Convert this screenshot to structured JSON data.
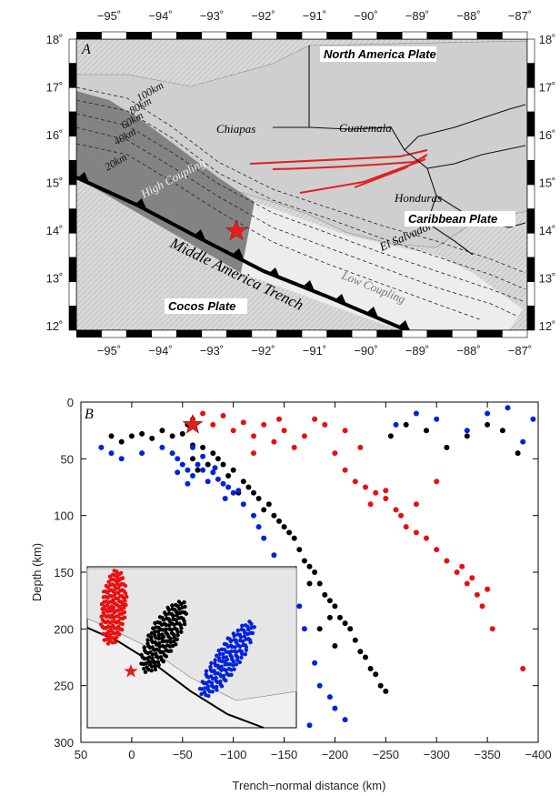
{
  "panel_a": {
    "label": "A",
    "lon_labels": [
      "−95˚",
      "−94˚",
      "−93˚",
      "−92˚",
      "−91˚",
      "−90˚",
      "−89˚",
      "−88˚",
      "−87˚"
    ],
    "lat_labels": [
      "18˚",
      "17˚",
      "16˚",
      "15˚",
      "14˚",
      "13˚",
      "12˚"
    ],
    "plates": {
      "north_america": "North America Plate",
      "caribbean": "Caribbean Plate",
      "cocos": "Cocos Plate"
    },
    "regions": {
      "chiapas": "Chiapas",
      "guatemala": "Guatemala",
      "honduras": "Honduras",
      "el_salvador": "El Salvador"
    },
    "zones": {
      "high": "High Coupling",
      "low": "Low Coupling"
    },
    "trench": "Middle America Trench",
    "contours": [
      "100km",
      "80km",
      "60km",
      "40km",
      "20km"
    ],
    "colors": {
      "high_coupling": "#777777",
      "low_coupling": "#eeeeee",
      "faults": "#e02020",
      "star": "#e02020"
    }
  },
  "chart_data": {
    "type": "scatter",
    "panel_label": "B",
    "xlabel": "Trench−normal distance (km)",
    "ylabel": "Depth (km)",
    "xlim": [
      50,
      -400
    ],
    "ylim": [
      300,
      0
    ],
    "x_ticks": [
      50,
      0,
      -50,
      -100,
      -150,
      -200,
      -250,
      -300,
      -350,
      -400
    ],
    "x_tick_labels": [
      "50",
      "0",
      "−50",
      "−100",
      "−150",
      "−200",
      "−250",
      "−300",
      "−350",
      "−400"
    ],
    "y_ticks": [
      0,
      50,
      100,
      150,
      200,
      250,
      300
    ],
    "y_tick_labels": [
      "0",
      "50",
      "100",
      "150",
      "200",
      "250",
      "300"
    ],
    "series": [
      {
        "color": "#000000",
        "points": [
          [
            20,
            30
          ],
          [
            10,
            35
          ],
          [
            0,
            30
          ],
          [
            -10,
            28
          ],
          [
            -20,
            32
          ],
          [
            -30,
            25
          ],
          [
            -40,
            30
          ],
          [
            -50,
            28
          ],
          [
            -55,
            20
          ],
          [
            -60,
            38
          ],
          [
            -70,
            40
          ],
          [
            -80,
            45
          ],
          [
            -90,
            55
          ],
          [
            -100,
            60
          ],
          [
            -110,
            70
          ],
          [
            -115,
            75
          ],
          [
            -120,
            80
          ],
          [
            -125,
            85
          ],
          [
            -130,
            95
          ],
          [
            -140,
            100
          ],
          [
            -145,
            105
          ],
          [
            -150,
            110
          ],
          [
            -155,
            115
          ],
          [
            -160,
            120
          ],
          [
            -165,
            130
          ],
          [
            -170,
            140
          ],
          [
            -175,
            145
          ],
          [
            -180,
            150
          ],
          [
            -185,
            160
          ],
          [
            -190,
            170
          ],
          [
            -195,
            175
          ],
          [
            -200,
            180
          ],
          [
            -205,
            190
          ],
          [
            -210,
            195
          ],
          [
            -215,
            200
          ],
          [
            -220,
            210
          ],
          [
            -225,
            220
          ],
          [
            -230,
            225
          ],
          [
            -235,
            235
          ],
          [
            -240,
            240
          ],
          [
            -245,
            250
          ],
          [
            -250,
            255
          ],
          [
            -255,
            30
          ],
          [
            -270,
            20
          ],
          [
            -290,
            25
          ],
          [
            -310,
            40
          ],
          [
            -330,
            30
          ],
          [
            -350,
            20
          ],
          [
            -365,
            25
          ],
          [
            -380,
            45
          ],
          [
            -60,
            50
          ],
          [
            -65,
            60
          ],
          [
            -75,
            55
          ],
          [
            -85,
            50
          ],
          [
            -95,
            65
          ],
          [
            -105,
            80
          ],
          [
            -135,
            90
          ],
          [
            -185,
            200
          ],
          [
            -200,
            215
          ],
          [
            -175,
            160
          ],
          [
            -195,
            190
          ]
        ]
      },
      {
        "color": "#0022dd",
        "points": [
          [
            30,
            40
          ],
          [
            20,
            45
          ],
          [
            10,
            50
          ],
          [
            -10,
            45
          ],
          [
            -30,
            40
          ],
          [
            -40,
            45
          ],
          [
            -45,
            50
          ],
          [
            -50,
            55
          ],
          [
            -55,
            60
          ],
          [
            -60,
            65
          ],
          [
            -65,
            55
          ],
          [
            -70,
            60
          ],
          [
            -75,
            70
          ],
          [
            -80,
            62
          ],
          [
            -85,
            68
          ],
          [
            -90,
            72
          ],
          [
            -95,
            75
          ],
          [
            -100,
            80
          ],
          [
            -105,
            78
          ],
          [
            -110,
            90
          ],
          [
            -120,
            100
          ],
          [
            -130,
            120
          ],
          [
            -140,
            135
          ],
          [
            -150,
            150
          ],
          [
            -160,
            170
          ],
          [
            -170,
            200
          ],
          [
            -180,
            230
          ],
          [
            -185,
            250
          ],
          [
            -195,
            260
          ],
          [
            -200,
            270
          ],
          [
            -210,
            280
          ],
          [
            -175,
            285
          ],
          [
            -260,
            20
          ],
          [
            -280,
            10
          ],
          [
            -300,
            15
          ],
          [
            -330,
            25
          ],
          [
            -350,
            10
          ],
          [
            -370,
            5
          ],
          [
            -385,
            35
          ],
          [
            -395,
            15
          ],
          [
            -60,
            40
          ],
          [
            -70,
            48
          ],
          [
            -45,
            62
          ],
          [
            -55,
            72
          ],
          [
            -82,
            58
          ],
          [
            -92,
            85
          ],
          [
            -125,
            110
          ],
          [
            -165,
            180
          ],
          [
            -150,
            260
          ]
        ]
      },
      {
        "color": "#e81010",
        "points": [
          [
            -60,
            15
          ],
          [
            -70,
            10
          ],
          [
            -80,
            20
          ],
          [
            -90,
            12
          ],
          [
            -100,
            25
          ],
          [
            -110,
            18
          ],
          [
            -120,
            30
          ],
          [
            -130,
            20
          ],
          [
            -140,
            35
          ],
          [
            -150,
            25
          ],
          [
            -160,
            40
          ],
          [
            -170,
            30
          ],
          [
            -180,
            15
          ],
          [
            -190,
            20
          ],
          [
            -200,
            45
          ],
          [
            -210,
            60
          ],
          [
            -220,
            70
          ],
          [
            -230,
            75
          ],
          [
            -240,
            80
          ],
          [
            -250,
            85
          ],
          [
            -260,
            95
          ],
          [
            -265,
            100
          ],
          [
            -270,
            110
          ],
          [
            -280,
            115
          ],
          [
            -290,
            120
          ],
          [
            -300,
            130
          ],
          [
            -310,
            140
          ],
          [
            -320,
            150
          ],
          [
            -330,
            160
          ],
          [
            -340,
            170
          ],
          [
            -345,
            180
          ],
          [
            -355,
            200
          ],
          [
            -385,
            235
          ],
          [
            -300,
            70
          ],
          [
            -280,
            90
          ],
          [
            -250,
            78
          ],
          [
            -235,
            90
          ],
          [
            -325,
            145
          ],
          [
            -335,
            155
          ],
          [
            -350,
            165
          ],
          [
            -120,
            45
          ],
          [
            -145,
            15
          ],
          [
            -225,
            40
          ],
          [
            -210,
            25
          ]
        ]
      }
    ],
    "star": {
      "x": -60,
      "y": 20,
      "color": "#e02020"
    },
    "inset_labels": []
  }
}
